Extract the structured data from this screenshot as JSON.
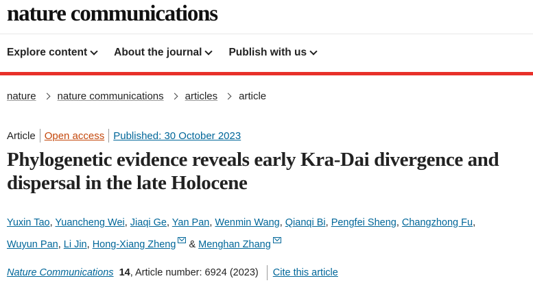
{
  "site": {
    "logo": "nature communications"
  },
  "nav": [
    {
      "label": "Explore content"
    },
    {
      "label": "About the journal"
    },
    {
      "label": "Publish with us"
    }
  ],
  "breadcrumb": [
    "nature",
    "nature communications",
    "articles",
    "article"
  ],
  "meta": {
    "type": "Article",
    "access": "Open access",
    "published": "Published: 30 October 2023"
  },
  "article": {
    "title": "Phylogenetic evidence reveals early Kra-Dai divergence and dispersal in the late Holocene",
    "authors": [
      "Yuxin Tao",
      "Yuancheng Wei",
      "Jiaqi Ge",
      "Yan Pan",
      "Wenmin Wang",
      "Qianqi Bi",
      "Pengfei Sheng",
      "Changzhong Fu",
      "Wuyun Pan",
      "Li Jin",
      "Hong-Xiang Zheng",
      "Menghan Zhang"
    ],
    "and": "&"
  },
  "citation": {
    "journal": "Nature Communications",
    "volume": "14",
    "article_number": ", Article number: 6924 (2023)",
    "cite_label": "Cite this article"
  },
  "colors": {
    "link": "#006699",
    "open_access": "#c4470b",
    "accent_bar": "#e8302a"
  }
}
